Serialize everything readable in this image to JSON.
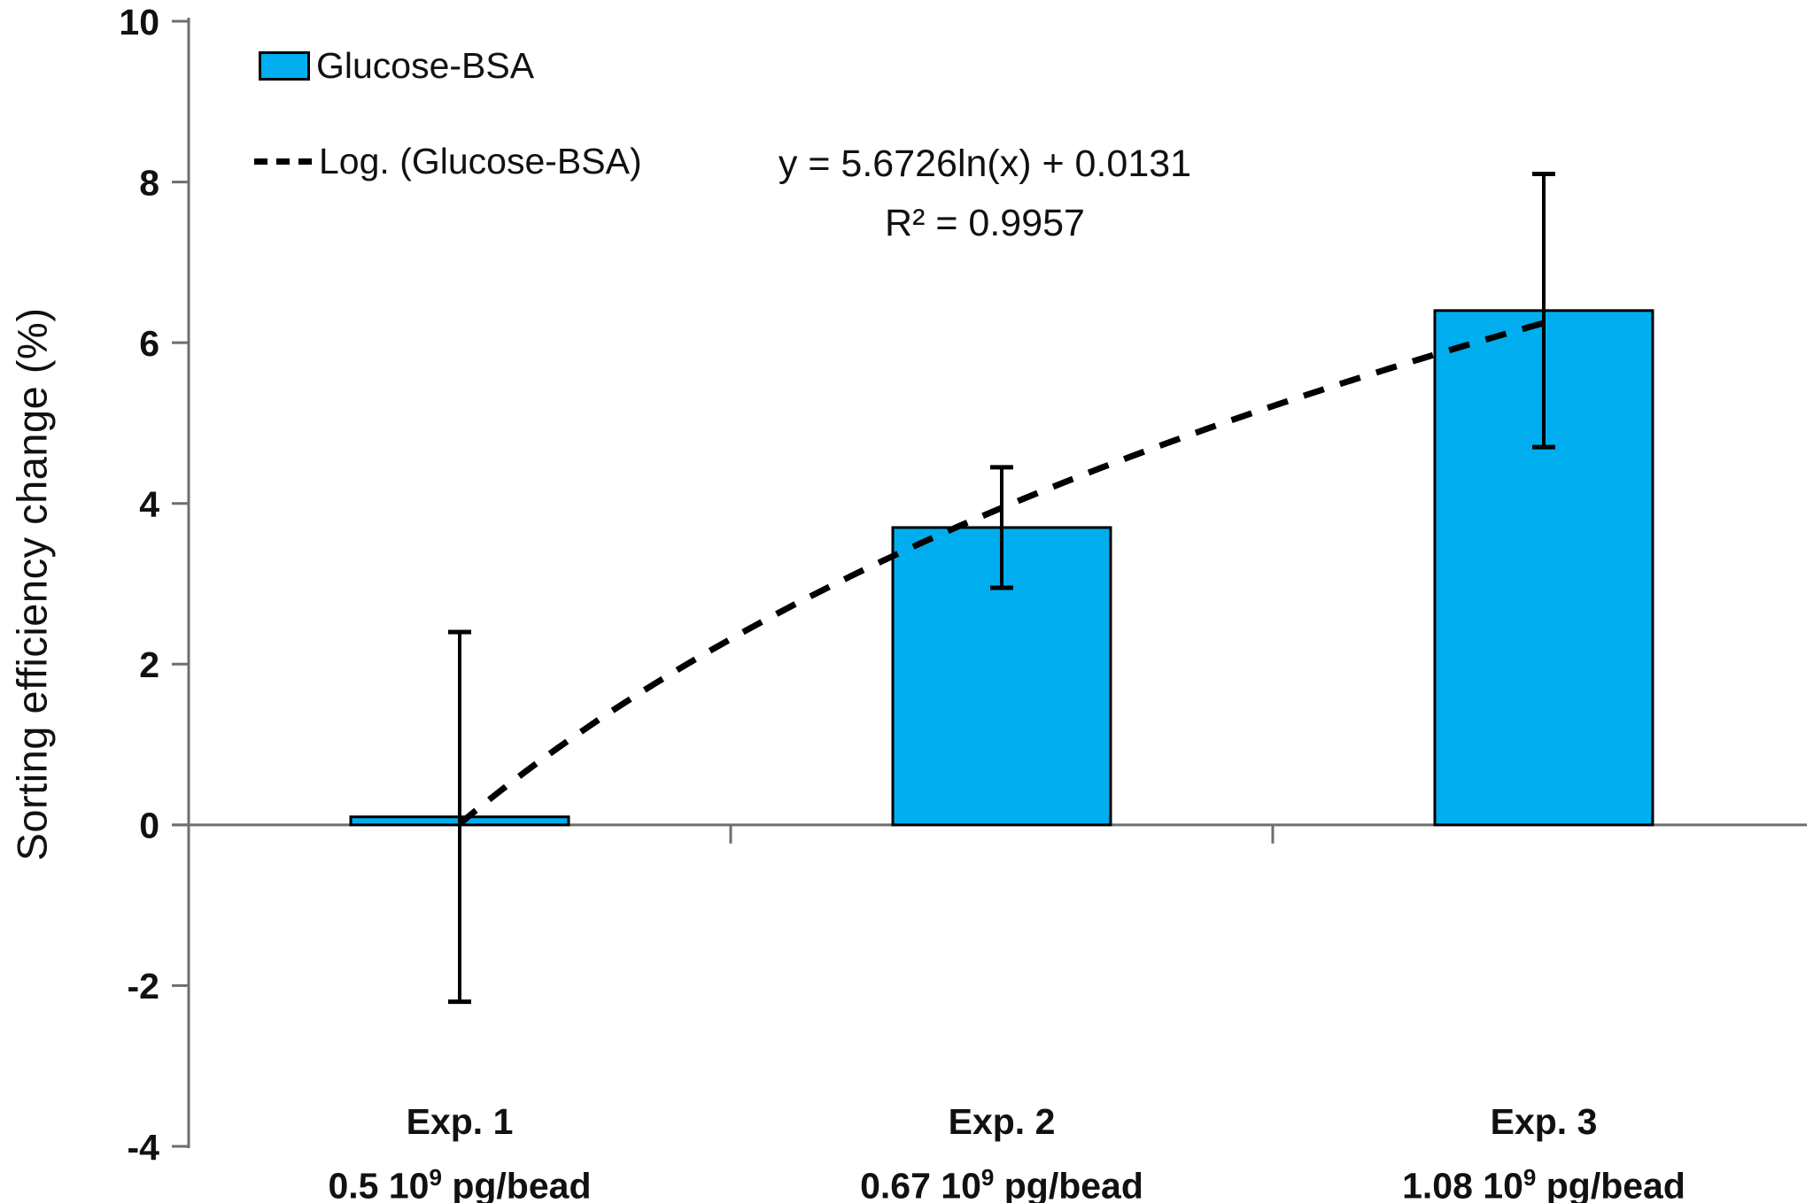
{
  "chart_data": {
    "type": "bar",
    "title": "",
    "xlabel": "",
    "ylabel": "Sorting efficiency change (%)",
    "ylim": [
      -4,
      10
    ],
    "ytick_step": 2,
    "grid": false,
    "legend_position": "top-left inside",
    "categories": [
      {
        "line1": "Exp. 1",
        "dose_base": "0.5 10",
        "dose_sup": "9",
        "dose_unit": " pg/bead"
      },
      {
        "line1": "Exp. 2",
        "dose_base": "0.67 10",
        "dose_sup": "9",
        "dose_unit": " pg/bead"
      },
      {
        "line1": "Exp. 3",
        "dose_base": "1.08 10",
        "dose_sup": "9",
        "dose_unit": " pg/bead"
      }
    ],
    "x_index": [
      1,
      2,
      3
    ],
    "series": [
      {
        "name": "Glucose-BSA",
        "values": [
          0.1,
          3.7,
          6.4
        ],
        "error_bars": [
          2.3,
          0.75,
          1.7
        ]
      }
    ],
    "trendline": {
      "name": "Log. (Glucose-BSA)",
      "kind": "logarithmic",
      "a": 5.6726,
      "b": 0.0131,
      "equation": "y = 5.6726ln(x) + 0.0131",
      "r_squared": "R² = 0.9957"
    },
    "legend": [
      {
        "label": "Glucose-BSA",
        "swatch": "bar-fill"
      },
      {
        "label": "Log. (Glucose-BSA)",
        "swatch": "dashed-line"
      }
    ],
    "colors": {
      "bar": "#00AEEF",
      "bar_border": "#000000",
      "axis": "#6e6e6e",
      "error_bar": "#000000",
      "trendline": "#000000",
      "text": "#111111",
      "background": "#ffffff"
    }
  }
}
